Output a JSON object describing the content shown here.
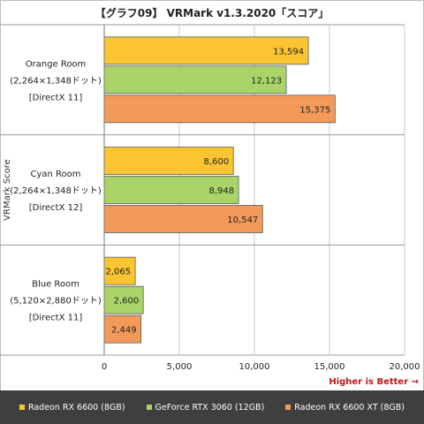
{
  "title": "【グラフ09】 VRMark v1.3.2020「スコア」",
  "note": "Higher is Better →",
  "colors": {
    "series": [
      "#fbc531",
      "#a8d468",
      "#f39a5b"
    ],
    "legend_bg": "#3f3f3f",
    "note": "#c0161d"
  },
  "legend": [
    "Radeon RX 6600 (8GB)",
    "GeForce RTX 3060 (12GB)",
    "Radeon RX 6600 XT (8GB)"
  ],
  "chart_data": {
    "type": "bar",
    "orientation": "horizontal",
    "ylabel": "VRMark Score",
    "xlim": [
      0,
      20000
    ],
    "x_ticks": [
      "0",
      "5,000",
      "10,000",
      "15,000",
      "20,000"
    ],
    "grid": true,
    "legend_position": "bottom",
    "categories": [
      {
        "lines": [
          "Orange Room",
          "(2,264×1,348ドット)",
          "[DirectX 11]"
        ]
      },
      {
        "lines": [
          "Cyan Room",
          "(2,264×1,348ドット)",
          "[DirectX 12]"
        ]
      },
      {
        "lines": [
          "Blue Room",
          "(5,120×2,880ドット)",
          "[DirectX 11]"
        ]
      }
    ],
    "series": [
      {
        "name": "Radeon RX 6600 (8GB)",
        "values": [
          13594,
          8600,
          2065
        ],
        "labels": [
          "13,594",
          "8,600",
          "2,065"
        ]
      },
      {
        "name": "GeForce RTX 3060 (12GB)",
        "values": [
          12123,
          8948,
          2600
        ],
        "labels": [
          "12,123",
          "8,948",
          "2,600"
        ]
      },
      {
        "name": "Radeon RX 6600 XT (8GB)",
        "values": [
          15375,
          10547,
          2449
        ],
        "labels": [
          "15,375",
          "10,547",
          "2,449"
        ]
      }
    ]
  }
}
